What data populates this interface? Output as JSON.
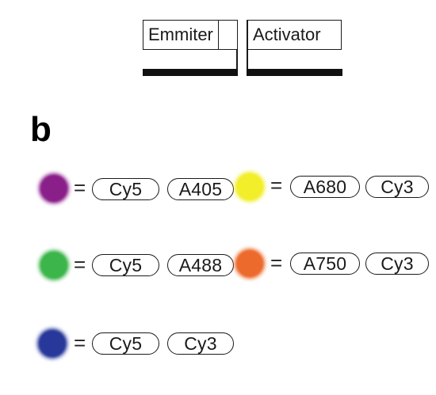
{
  "construct": {
    "emitter_label": "Emmiter",
    "activator_label": "Activator"
  },
  "panel_label": "b",
  "equals_sign": "=",
  "dye_pairs": [
    {
      "dot_color": "#8a1f8a",
      "dye_1": "Cy5",
      "dye_2": "A405"
    },
    {
      "dot_color": "#f2ee2a",
      "dye_1": "A680",
      "dye_2": "Cy3"
    },
    {
      "dot_color": "#3cb54a",
      "dye_1": "Cy5",
      "dye_2": "A488"
    },
    {
      "dot_color": "#ec6a2c",
      "dye_1": "A750",
      "dye_2": "Cy3"
    },
    {
      "dot_color": "#27389a",
      "dye_1": "Cy5",
      "dye_2": "Cy3"
    }
  ]
}
